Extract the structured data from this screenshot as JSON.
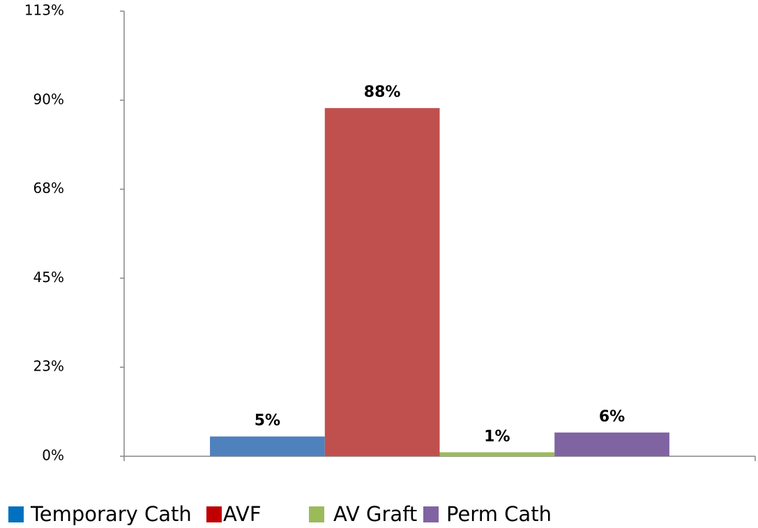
{
  "chart_data": {
    "type": "bar",
    "categories": [
      null
    ],
    "series": [
      {
        "name": "Temporary Cath",
        "color": "#4f81bd",
        "legend_color": "#0070c0",
        "values": [
          5
        ],
        "value_labels": [
          "5%"
        ]
      },
      {
        "name": "AVF",
        "color": "#c0504d",
        "legend_color": "#c00000",
        "values": [
          88
        ],
        "value_labels": [
          "88%"
        ]
      },
      {
        "name": "AV Graft",
        "color": "#9bbb59",
        "legend_color": "#9bbb59",
        "values": [
          1
        ],
        "value_labels": [
          "1%"
        ]
      },
      {
        "name": "Perm Cath",
        "color": "#8064a2",
        "legend_color": "#8064a2",
        "values": [
          6
        ],
        "value_labels": [
          "6%"
        ]
      }
    ],
    "ylim": [
      0,
      112.5
    ],
    "yticks": [
      {
        "value": 0,
        "label": "0%"
      },
      {
        "value": 22.5,
        "label": "23%"
      },
      {
        "value": 45,
        "label": "45%"
      },
      {
        "value": 67.5,
        "label": "68%"
      },
      {
        "value": 90,
        "label": "90%"
      },
      {
        "value": 112.5,
        "label": "113%"
      }
    ],
    "grid": false,
    "legend": "bottom"
  }
}
